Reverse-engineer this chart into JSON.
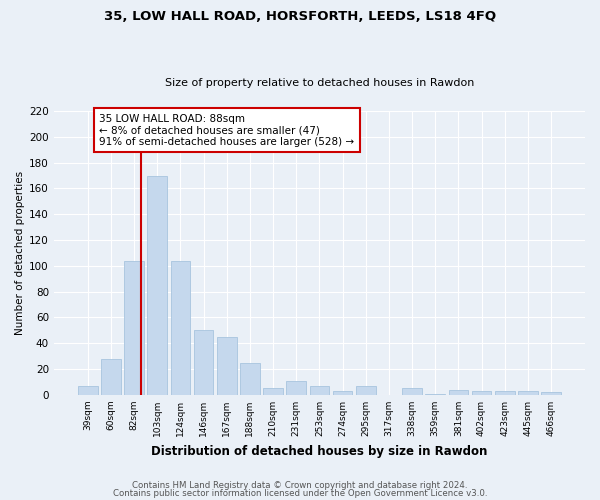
{
  "title1": "35, LOW HALL ROAD, HORSFORTH, LEEDS, LS18 4FQ",
  "title2": "Size of property relative to detached houses in Rawdon",
  "xlabel": "Distribution of detached houses by size in Rawdon",
  "ylabel": "Number of detached properties",
  "categories": [
    "39sqm",
    "60sqm",
    "82sqm",
    "103sqm",
    "124sqm",
    "146sqm",
    "167sqm",
    "188sqm",
    "210sqm",
    "231sqm",
    "253sqm",
    "274sqm",
    "295sqm",
    "317sqm",
    "338sqm",
    "359sqm",
    "381sqm",
    "402sqm",
    "423sqm",
    "445sqm",
    "466sqm"
  ],
  "values": [
    7,
    28,
    104,
    170,
    104,
    50,
    45,
    25,
    5,
    11,
    7,
    3,
    7,
    0,
    5,
    1,
    4,
    3,
    3,
    3,
    2
  ],
  "bar_color": "#c5d8ed",
  "bar_edge_color": "#a8c4df",
  "annotation_text": "35 LOW HALL ROAD: 88sqm\n← 8% of detached houses are smaller (47)\n91% of semi-detached houses are larger (528) →",
  "annotation_box_color": "#ffffff",
  "annotation_box_edge_color": "#cc0000",
  "red_line_color": "#cc0000",
  "ylim": [
    0,
    220
  ],
  "yticks": [
    0,
    20,
    40,
    60,
    80,
    100,
    120,
    140,
    160,
    180,
    200,
    220
  ],
  "footer1": "Contains HM Land Registry data © Crown copyright and database right 2024.",
  "footer2": "Contains public sector information licensed under the Open Government Licence v3.0.",
  "bg_color": "#eaf0f7",
  "plot_bg_color": "#eaf0f7",
  "grid_color": "#ffffff"
}
